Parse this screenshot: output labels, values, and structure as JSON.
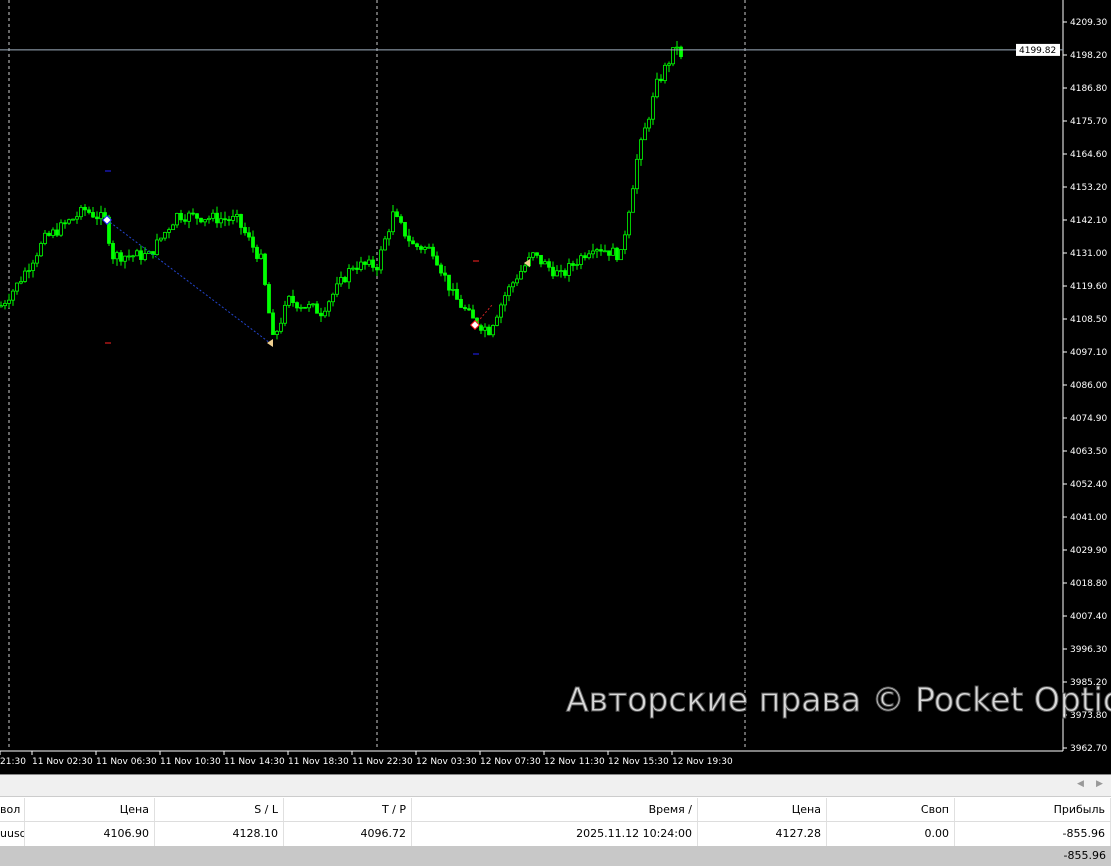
{
  "chart_data": {
    "type": "candlestick",
    "symbol_color": "#00ff00",
    "background": "#000000",
    "grid": false,
    "y_ticks": [
      "4209.30",
      "4198.20",
      "4186.80",
      "4175.70",
      "4164.60",
      "4153.20",
      "4142.10",
      "4131.00",
      "4119.60",
      "4108.50",
      "4097.10",
      "4086.00",
      "4074.90",
      "4063.50",
      "4052.40",
      "4041.00",
      "4029.90",
      "4018.80",
      "4007.40",
      "3996.30",
      "3985.20",
      "3973.80",
      "3962.70"
    ],
    "ylim": [
      3962.7,
      4209.3
    ],
    "x_ticks": [
      "21:30",
      "11 Nov 02:30",
      "11 Nov 06:30",
      "11 Nov 10:30",
      "11 Nov 14:30",
      "11 Nov 18:30",
      "11 Nov 22:30",
      "12 Nov 03:30",
      "12 Nov 07:30",
      "12 Nov 11:30",
      "12 Nov 15:30",
      "12 Nov 19:30"
    ],
    "current_price": "4199.82",
    "close_path": [
      [
        "11 Nov 00:30",
        4113
      ],
      [
        "11 Nov 01:30",
        4120
      ],
      [
        "11 Nov 03:15",
        4135.6
      ],
      [
        "11 Nov 05:45",
        4145.5
      ],
      [
        "11 Nov 07:00",
        4142
      ],
      [
        "11 Nov 07:30",
        4130
      ],
      [
        "11 Nov 09:45",
        4130
      ],
      [
        "11 Nov 11:30",
        4143.8
      ],
      [
        "11 Nov 15:15",
        4142
      ],
      [
        "11 Nov 16:45",
        4128.5
      ],
      [
        "11 Nov 17:30",
        4101.3
      ],
      [
        "11 Nov 18:30",
        4114.8
      ],
      [
        "11 Nov 20:30",
        4111
      ],
      [
        "11 Nov 22:30",
        4126.6
      ],
      [
        "12 Nov 00:00",
        4126.6
      ],
      [
        "12 Nov 01:00",
        4143.8
      ],
      [
        "12 Nov 02:15",
        4133.5
      ],
      [
        "12 Nov 03:30",
        4131.8
      ],
      [
        "12 Nov 04:45",
        4116.5
      ],
      [
        "12 Nov 06:00",
        4108
      ],
      [
        "12 Nov 07:00",
        4104.7
      ],
      [
        "12 Nov 08:00",
        4116.5
      ],
      [
        "12 Nov 08:45",
        4123
      ],
      [
        "12 Nov 09:45",
        4130
      ],
      [
        "12 Nov 11:30",
        4123
      ],
      [
        "12 Nov 13:30",
        4133.5
      ],
      [
        "12 Nov 15:15",
        4130
      ],
      [
        "12 Nov 16:15",
        4162.4
      ],
      [
        "12 Nov 17:30",
        4188
      ],
      [
        "12 Nov 18:45",
        4201.5
      ],
      [
        "12 Nov 19:00",
        4196.5
      ]
    ]
  },
  "table": {
    "headers": [
      "вол",
      "Цена",
      "S / L",
      "T / P",
      "Время  /",
      "Цена",
      "Своп",
      "Прибыль"
    ],
    "row": [
      "uusd",
      "4106.90",
      "4128.10",
      "4096.72",
      "2025.11.12 10:24:00",
      "4127.28",
      "0.00",
      "-855.96"
    ],
    "total": "-855.96"
  },
  "watermark": "Авторские права © Pocket Option"
}
